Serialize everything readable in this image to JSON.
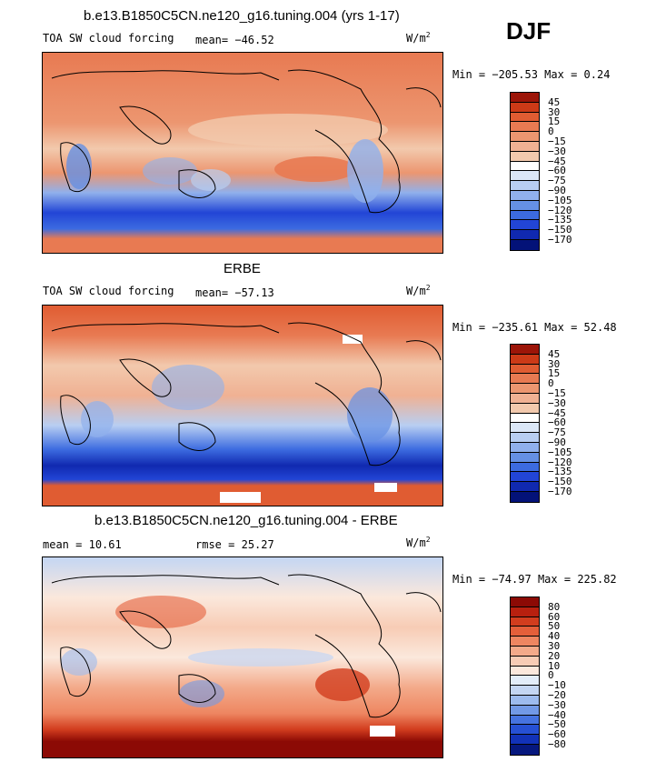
{
  "season": "DJF",
  "units_base": "W/m",
  "units_exp": "2",
  "colors": {
    "positive": [
      "#f2c9ad",
      "#f0b193",
      "#ec9670",
      "#e87a52",
      "#e05c32",
      "#cc3a17",
      "#9c1508"
    ],
    "neutral": "#ffffff",
    "negative": [
      "#dbe7f7",
      "#b8cef2",
      "#90b0ec",
      "#6590e4",
      "#3c6be0",
      "#2245d6",
      "#1029b0",
      "#031278"
    ]
  },
  "chart_data": [
    {
      "type": "heatmap",
      "panel": "model",
      "title": "b.e13.B1850C5CN.ne120_g16.tuning.004 (yrs 1-17)",
      "variable": "TOA SW cloud forcing",
      "mean_label": "mean=",
      "mean": "−46.52",
      "min_label": "Min =",
      "min": "−205.53",
      "max_label": "Max =",
      "max": "0.24",
      "colorbar_levels": [
        "45",
        "30",
        "15",
        "0",
        "−15",
        "−30",
        "−45",
        "−60",
        "−75",
        "−90",
        "−105",
        "−120",
        "−135",
        "−150",
        "−170"
      ],
      "colorbar_colors": [
        "#9c1508",
        "#cc3a17",
        "#e05c32",
        "#e87a52",
        "#ec9670",
        "#f0b193",
        "#f2c9ad",
        "#ffffff",
        "#dbe7f7",
        "#b8cef2",
        "#90b0ec",
        "#6590e4",
        "#3c6be0",
        "#2245d6",
        "#1029b0",
        "#031278"
      ]
    },
    {
      "type": "heatmap",
      "panel": "obs",
      "title": "ERBE",
      "variable": "TOA SW cloud forcing",
      "mean_label": "mean=",
      "mean": "−57.13",
      "min_label": "Min =",
      "min": "−235.61",
      "max_label": "Max =",
      "max": "52.48",
      "colorbar_levels": [
        "45",
        "30",
        "15",
        "0",
        "−15",
        "−30",
        "−45",
        "−60",
        "−75",
        "−90",
        "−105",
        "−120",
        "−135",
        "−150",
        "−170"
      ],
      "colorbar_colors": [
        "#9c1508",
        "#cc3a17",
        "#e05c32",
        "#e87a52",
        "#ec9670",
        "#f0b193",
        "#f2c9ad",
        "#ffffff",
        "#dbe7f7",
        "#b8cef2",
        "#90b0ec",
        "#6590e4",
        "#3c6be0",
        "#2245d6",
        "#1029b0",
        "#031278"
      ]
    },
    {
      "type": "heatmap",
      "panel": "difference",
      "title": "b.e13.B1850C5CN.ne120_g16.tuning.004 - ERBE",
      "mean_label": "mean =",
      "mean": "10.61",
      "rmse_label": "rmse =",
      "rmse": "25.27",
      "min_label": "Min =",
      "min": "−74.97",
      "max_label": "Max =",
      "max": "225.82",
      "colorbar_levels": [
        "80",
        "60",
        "50",
        "40",
        "30",
        "20",
        "10",
        "0",
        "−10",
        "−20",
        "−30",
        "−40",
        "−50",
        "−60",
        "−80"
      ],
      "colorbar_colors": [
        "#8c0a05",
        "#b8200f",
        "#d23d1e",
        "#e45f3a",
        "#ee8661",
        "#f3aa8a",
        "#f7ccb5",
        "#fbe8dc",
        "#e3edf9",
        "#c4d6f3",
        "#9dbbee",
        "#7299e6",
        "#4673e0",
        "#2650d4",
        "#1232b8",
        "#06187e"
      ]
    }
  ]
}
